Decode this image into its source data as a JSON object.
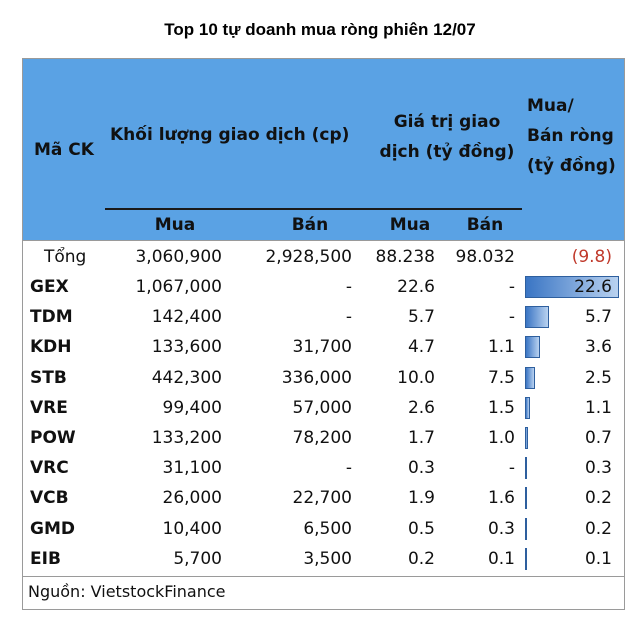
{
  "title": "Top 10 tự doanh mua ròng phiên 12/07",
  "headers": {
    "code": "Mã CK",
    "volume": "Khối lượng giao dịch (cp)",
    "value_line1": "Giá trị giao",
    "value_line2": "dịch (tỷ đồng)",
    "net_line1": "Mua/",
    "net_line2": "Bán ròng",
    "net_line3": "(tỷ đồng)",
    "vol_buy": "Mua",
    "vol_sell": "Bán",
    "val_buy": "Mua",
    "val_sell": "Bán"
  },
  "total": {
    "label": "Tổng",
    "vol_buy": "3,060,900",
    "vol_sell": "2,928,500",
    "val_buy": "88.238",
    "val_sell": "98.032",
    "net": "(9.8)"
  },
  "rows": [
    {
      "code": "GEX",
      "vol_buy": "1,067,000",
      "vol_sell": "-",
      "val_buy": "22.6",
      "val_sell": "-",
      "net": "22.6"
    },
    {
      "code": "TDM",
      "vol_buy": "142,400",
      "vol_sell": "-",
      "val_buy": "5.7",
      "val_sell": "-",
      "net": "5.7"
    },
    {
      "code": "KDH",
      "vol_buy": "133,600",
      "vol_sell": "31,700",
      "val_buy": "4.7",
      "val_sell": "1.1",
      "net": "3.6"
    },
    {
      "code": "STB",
      "vol_buy": "442,300",
      "vol_sell": "336,000",
      "val_buy": "10.0",
      "val_sell": "7.5",
      "net": "2.5"
    },
    {
      "code": "VRE",
      "vol_buy": "99,400",
      "vol_sell": "57,000",
      "val_buy": "2.6",
      "val_sell": "1.5",
      "net": "1.1"
    },
    {
      "code": "POW",
      "vol_buy": "133,200",
      "vol_sell": "78,200",
      "val_buy": "1.7",
      "val_sell": "1.0",
      "net": "0.7"
    },
    {
      "code": "VRC",
      "vol_buy": "31,100",
      "vol_sell": "-",
      "val_buy": "0.3",
      "val_sell": "-",
      "net": "0.3"
    },
    {
      "code": "VCB",
      "vol_buy": "26,000",
      "vol_sell": "22,700",
      "val_buy": "1.9",
      "val_sell": "1.6",
      "net": "0.2"
    },
    {
      "code": "GMD",
      "vol_buy": "10,400",
      "vol_sell": "6,500",
      "val_buy": "0.5",
      "val_sell": "0.3",
      "net": "0.2"
    },
    {
      "code": "EIB",
      "vol_buy": "5,700",
      "vol_sell": "3,500",
      "val_buy": "0.2",
      "val_sell": "0.1",
      "net": "0.1"
    }
  ],
  "source": "Nguồn: VietstockFinance",
  "colors": {
    "header_bg": "#5aa2e4",
    "bar": "#3a75c4",
    "negative": "#c0392b"
  },
  "chart_data": {
    "type": "table",
    "title": "Top 10 tự doanh mua ròng phiên 12/07",
    "columns": [
      "Mã CK",
      "Khối lượng giao dịch (cp) - Mua",
      "Khối lượng giao dịch (cp) - Bán",
      "Giá trị giao dịch (tỷ đồng) - Mua",
      "Giá trị giao dịch (tỷ đồng) - Bán",
      "Mua/Bán ròng (tỷ đồng)"
    ],
    "categories": [
      "GEX",
      "TDM",
      "KDH",
      "STB",
      "VRE",
      "POW",
      "VRC",
      "VCB",
      "GMD",
      "EIB"
    ],
    "net_values": [
      22.6,
      5.7,
      3.6,
      2.5,
      1.1,
      0.7,
      0.3,
      0.2,
      0.2,
      0.1
    ],
    "net_max": 22.6,
    "total_net": -9.8
  }
}
